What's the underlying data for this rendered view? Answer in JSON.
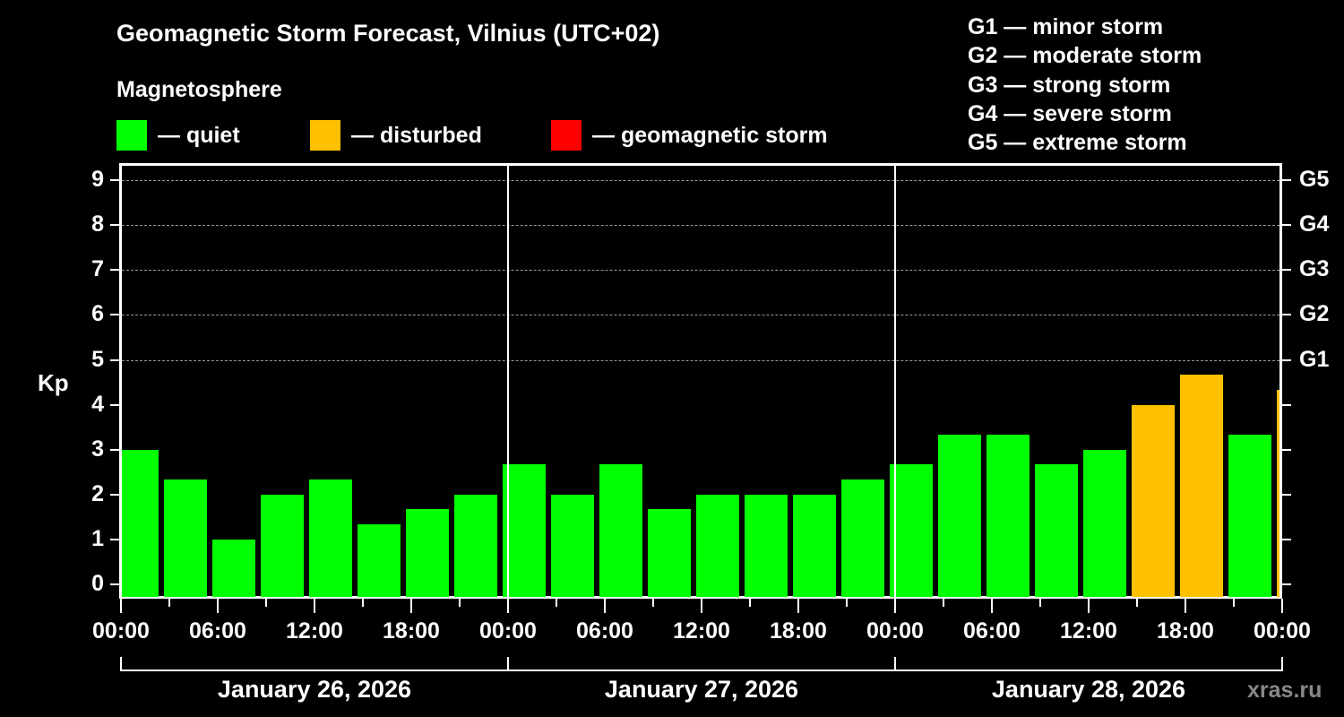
{
  "title": "Geomagnetic Storm Forecast, Vilnius (UTC+02)",
  "subtitle": "Magnetosphere",
  "legend": [
    {
      "label": "— quiet",
      "color": "#00ff00"
    },
    {
      "label": "— disturbed",
      "color": "#ffc000"
    },
    {
      "label": "— geomagnetic storm",
      "color": "#ff0000"
    }
  ],
  "g_legend": [
    "G1 — minor storm",
    "G2 — moderate storm",
    "G3 — strong storm",
    "G4 — severe storm",
    "G5 — extreme storm"
  ],
  "watermark": "xras.ru",
  "chart_data": {
    "type": "bar",
    "title": "Geomagnetic Storm Forecast, Vilnius (UTC+02)",
    "ylabel": "Kp",
    "xlabel": "",
    "ylim": [
      0,
      9
    ],
    "yticks": [
      0,
      1,
      2,
      3,
      4,
      5,
      6,
      7,
      8,
      9
    ],
    "right_axis_labels": [
      {
        "kp": 5,
        "label": "G1"
      },
      {
        "kp": 6,
        "label": "G2"
      },
      {
        "kp": 7,
        "label": "G3"
      },
      {
        "kp": 8,
        "label": "G4"
      },
      {
        "kp": 9,
        "label": "G5"
      }
    ],
    "grid": "dashed horizontal at Kp 5-9",
    "xtick_labels": [
      "00:00",
      "06:00",
      "12:00",
      "18:00",
      "00:00",
      "06:00",
      "12:00",
      "18:00",
      "00:00",
      "06:00",
      "12:00",
      "18:00",
      "00:00"
    ],
    "dates": [
      "January 26, 2026",
      "January 27, 2026",
      "January 28, 2026"
    ],
    "bar_interval_hours": 3,
    "first_bar_center_hour": 1,
    "values": [
      3,
      2.33,
      1,
      2,
      2.33,
      1.33,
      1.67,
      2,
      2.67,
      2,
      2.67,
      1.67,
      2,
      2,
      2,
      2.33,
      2.67,
      3.33,
      3.33,
      2.67,
      3,
      4,
      4.67,
      3.33,
      4.33
    ],
    "status": [
      "quiet",
      "quiet",
      "quiet",
      "quiet",
      "quiet",
      "quiet",
      "quiet",
      "quiet",
      "quiet",
      "quiet",
      "quiet",
      "quiet",
      "quiet",
      "quiet",
      "quiet",
      "quiet",
      "quiet",
      "quiet",
      "quiet",
      "quiet",
      "quiet",
      "disturbed",
      "disturbed",
      "quiet",
      "disturbed"
    ],
    "colors": {
      "quiet": "#00ff00",
      "disturbed": "#ffc000",
      "storm": "#ff0000"
    }
  }
}
